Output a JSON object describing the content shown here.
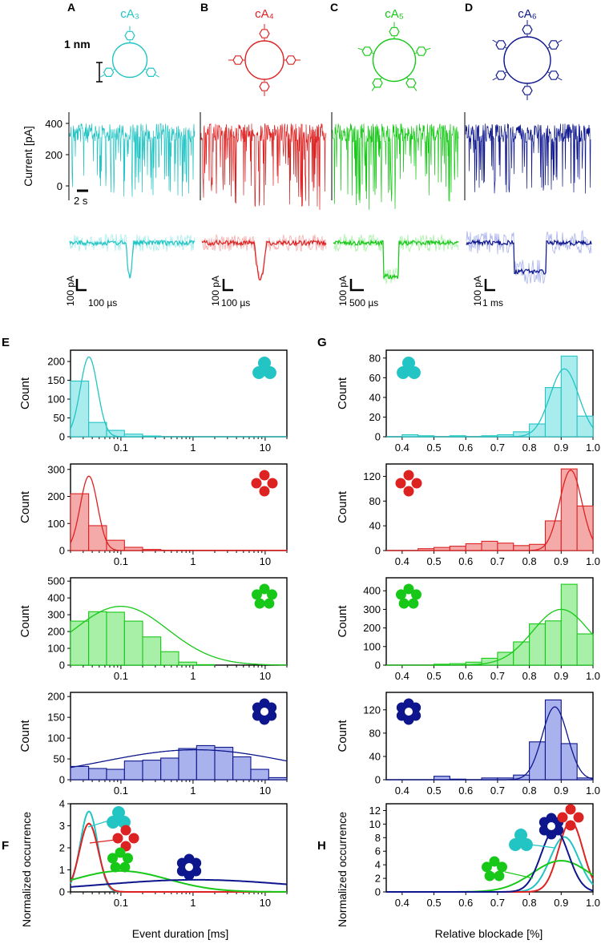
{
  "colors": {
    "cA3": "#22c4c4",
    "cA4": "#dd2222",
    "cA5": "#18c818",
    "cA6": "#0d168c"
  },
  "panels": {
    "A": {
      "letter": "A",
      "label": "cA₃"
    },
    "B": {
      "letter": "B",
      "label": "cA₄"
    },
    "C": {
      "letter": "C",
      "label": "cA₅"
    },
    "D": {
      "letter": "D",
      "label": "cA₆"
    },
    "E": "E",
    "F": "F",
    "G": "G",
    "H": "H"
  },
  "scale_nm": "1 nm",
  "trace_ylabel": "Current [pA]",
  "trace_yticks": [
    "400",
    "200",
    "0"
  ],
  "time_scale": "2 s",
  "zoom_scales": [
    {
      "current": "100 pA",
      "time": "100 µs"
    },
    {
      "current": "100 pA",
      "time": "100 µs"
    },
    {
      "current": "100 pA",
      "time": "500 µs"
    },
    {
      "current": "100 pA",
      "time": "1 ms"
    }
  ],
  "chart_data": [
    {
      "type": "bar",
      "panel": "E-cA3",
      "scale": "log",
      "xlim": [
        0.02,
        20
      ],
      "ylim": [
        0,
        230
      ],
      "yticks": [
        0,
        50,
        100,
        150,
        200
      ],
      "ylabel": "Count",
      "bins": [
        [
          0.02,
          0.0357,
          148
        ],
        [
          0.0357,
          0.0632,
          38
        ],
        [
          0.0632,
          0.112,
          17
        ],
        [
          0.112,
          0.2,
          7
        ],
        [
          0.2,
          0.357,
          2
        ]
      ],
      "fit": {
        "mu": 0.036,
        "sigma": 0.12,
        "peak": 212
      }
    },
    {
      "type": "bar",
      "panel": "E-cA4",
      "scale": "log",
      "xlim": [
        0.02,
        20
      ],
      "ylim": [
        0,
        320
      ],
      "yticks": [
        0,
        100,
        200,
        300
      ],
      "ylabel": "Count",
      "bins": [
        [
          0.02,
          0.0357,
          210
        ],
        [
          0.0357,
          0.0632,
          92
        ],
        [
          0.0632,
          0.112,
          38
        ],
        [
          0.112,
          0.2,
          12
        ],
        [
          0.2,
          0.357,
          4
        ],
        [
          0.357,
          20,
          1
        ]
      ],
      "fit": {
        "mu": 0.036,
        "sigma": 0.12,
        "peak": 275
      }
    },
    {
      "type": "bar",
      "panel": "E-cA5",
      "scale": "log",
      "xlim": [
        0.02,
        20
      ],
      "ylim": [
        0,
        520
      ],
      "yticks": [
        0,
        100,
        200,
        300,
        400,
        500
      ],
      "ylabel": "Count",
      "bins": [
        [
          0.02,
          0.0357,
          262
        ],
        [
          0.0357,
          0.0632,
          318
        ],
        [
          0.0632,
          0.112,
          315
        ],
        [
          0.112,
          0.2,
          262
        ],
        [
          0.2,
          0.357,
          168
        ],
        [
          0.357,
          0.632,
          80
        ],
        [
          0.632,
          1.12,
          18
        ],
        [
          1.12,
          2,
          3
        ]
      ],
      "fit": {
        "mu": 0.1,
        "sigma": 0.65,
        "peak": 350
      }
    },
    {
      "type": "bar",
      "panel": "E-cA6",
      "scale": "log",
      "xlim": [
        0.02,
        20
      ],
      "ylim": [
        0,
        210
      ],
      "yticks": [
        0,
        50,
        100,
        150,
        200
      ],
      "ylabel": "Count",
      "bins": [
        [
          0.02,
          0.0357,
          32
        ],
        [
          0.0357,
          0.0632,
          27
        ],
        [
          0.0632,
          0.112,
          25
        ],
        [
          0.112,
          0.2,
          45
        ],
        [
          0.2,
          0.357,
          47
        ],
        [
          0.357,
          0.632,
          52
        ],
        [
          0.632,
          1.12,
          75
        ],
        [
          1.12,
          2,
          82
        ],
        [
          2,
          3.57,
          78
        ],
        [
          3.57,
          6.32,
          55
        ],
        [
          6.32,
          11.2,
          25
        ],
        [
          11.2,
          20,
          5
        ]
      ],
      "fit": {
        "mu": 1.1,
        "sigma": 1.3,
        "peak": 72
      }
    },
    {
      "type": "line",
      "panel": "F",
      "scale": "log",
      "xlim": [
        0.02,
        20
      ],
      "ylim": [
        0,
        4
      ],
      "yticks": [
        0,
        1,
        2,
        3,
        4
      ],
      "xlabel": "Event duration [ms]",
      "ylabel": "Normalized occurrence",
      "series": [
        {
          "key": "cA3",
          "mu": 0.036,
          "sigma": 0.12,
          "peak": 3.65
        },
        {
          "key": "cA4",
          "mu": 0.036,
          "sigma": 0.13,
          "peak": 3.1
        },
        {
          "key": "cA5",
          "mu": 0.1,
          "sigma": 0.65,
          "peak": 0.95
        },
        {
          "key": "cA6",
          "mu": 1.1,
          "sigma": 1.3,
          "peak": 0.55
        }
      ]
    },
    {
      "type": "bar",
      "panel": "G-cA3",
      "scale": "lin",
      "xlim": [
        0.35,
        1.0
      ],
      "ylim": [
        0,
        88
      ],
      "yticks": [
        0,
        20,
        40,
        60,
        80
      ],
      "ylabel": "Count",
      "bins": [
        [
          0.4,
          0.45,
          2
        ],
        [
          0.45,
          0.5,
          1
        ],
        [
          0.55,
          0.6,
          1
        ],
        [
          0.65,
          0.7,
          1
        ],
        [
          0.7,
          0.75,
          2
        ],
        [
          0.75,
          0.8,
          5
        ],
        [
          0.8,
          0.85,
          13
        ],
        [
          0.85,
          0.9,
          50
        ],
        [
          0.9,
          0.95,
          82
        ],
        [
          0.95,
          1.0,
          21
        ]
      ],
      "fit": {
        "mu": 0.91,
        "sigma": 0.045,
        "peak": 69
      }
    },
    {
      "type": "bar",
      "panel": "G-cA4",
      "scale": "lin",
      "xlim": [
        0.35,
        1.0
      ],
      "ylim": [
        0,
        140
      ],
      "yticks": [
        0,
        40,
        80,
        120
      ],
      "ylabel": "Count",
      "bins": [
        [
          0.45,
          0.5,
          3
        ],
        [
          0.5,
          0.55,
          5
        ],
        [
          0.55,
          0.6,
          7
        ],
        [
          0.6,
          0.65,
          11
        ],
        [
          0.65,
          0.7,
          15
        ],
        [
          0.7,
          0.75,
          12
        ],
        [
          0.75,
          0.8,
          8
        ],
        [
          0.8,
          0.85,
          10
        ],
        [
          0.85,
          0.9,
          48
        ],
        [
          0.9,
          0.95,
          132
        ],
        [
          0.95,
          1.0,
          72
        ]
      ],
      "fit": {
        "mu": 0.93,
        "sigma": 0.035,
        "peak": 130
      }
    },
    {
      "type": "bar",
      "panel": "G-cA5",
      "scale": "lin",
      "xlim": [
        0.35,
        1.0
      ],
      "ylim": [
        0,
        470
      ],
      "yticks": [
        0,
        100,
        200,
        300,
        400
      ],
      "ylabel": "Count",
      "bins": [
        [
          0.5,
          0.55,
          5
        ],
        [
          0.55,
          0.6,
          8
        ],
        [
          0.6,
          0.65,
          16
        ],
        [
          0.65,
          0.7,
          37
        ],
        [
          0.7,
          0.75,
          69
        ],
        [
          0.75,
          0.8,
          125
        ],
        [
          0.8,
          0.85,
          222
        ],
        [
          0.85,
          0.9,
          238
        ],
        [
          0.9,
          0.95,
          435
        ],
        [
          0.95,
          1.0,
          168
        ]
      ],
      "fit": {
        "mu": 0.9,
        "sigma": 0.09,
        "peak": 300
      }
    },
    {
      "type": "bar",
      "panel": "G-cA6",
      "scale": "lin",
      "xlim": [
        0.35,
        1.0
      ],
      "ylim": [
        0,
        150
      ],
      "yticks": [
        0,
        40,
        80,
        120
      ],
      "ylabel": "Count",
      "bins": [
        [
          0.5,
          0.55,
          6
        ],
        [
          0.55,
          0.6,
          1
        ],
        [
          0.65,
          0.7,
          3
        ],
        [
          0.7,
          0.75,
          3
        ],
        [
          0.75,
          0.8,
          8
        ],
        [
          0.8,
          0.85,
          65
        ],
        [
          0.85,
          0.9,
          137
        ],
        [
          0.9,
          0.95,
          62
        ],
        [
          0.95,
          1.0,
          3
        ]
      ],
      "fit": {
        "mu": 0.88,
        "sigma": 0.04,
        "peak": 125
      }
    },
    {
      "type": "line",
      "panel": "H",
      "scale": "lin",
      "xlim": [
        0.35,
        1.0
      ],
      "ylim": [
        0,
        13
      ],
      "yticks": [
        0,
        2,
        4,
        6,
        8,
        10,
        12
      ],
      "xlabel": "Relative blockade [%]",
      "ylabel": "Normalized occurrence",
      "series": [
        {
          "key": "cA3",
          "mu": 0.91,
          "sigma": 0.045,
          "peak": 8.1
        },
        {
          "key": "cA4",
          "mu": 0.93,
          "sigma": 0.038,
          "peak": 10.4
        },
        {
          "key": "cA5",
          "mu": 0.9,
          "sigma": 0.09,
          "peak": 4.6
        },
        {
          "key": "cA6",
          "mu": 0.88,
          "sigma": 0.043,
          "peak": 9.2
        }
      ]
    }
  ],
  "e_xticks": [
    "0.1",
    "1",
    "10"
  ],
  "g_xticks": [
    "0.4",
    "0.5",
    "0.6",
    "0.7",
    "0.8",
    "0.9",
    "1.0"
  ]
}
